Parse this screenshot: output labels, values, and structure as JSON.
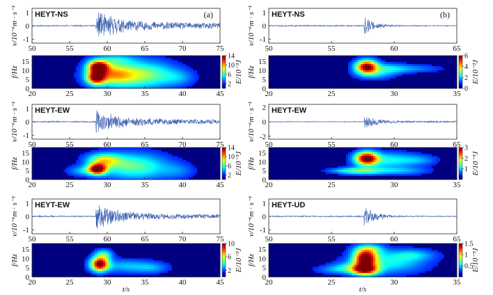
{
  "chart_data": {
    "type": "multi-panel waveform and time-frequency spectrogram",
    "panels": [
      {
        "id": "a",
        "label": "(a)",
        "waveforms": [
          {
            "station": "HEYT-NS",
            "ylabel": "v/10⁻⁶m · s⁻¹",
            "xlim": [
              50,
              75
            ],
            "xticks": [
              50,
              55,
              60,
              65,
              70,
              75
            ],
            "ylim": [
              -1.3,
              1.3
            ],
            "yticks": [
              -1,
              0,
              1
            ],
            "onset_s": 58.5,
            "peak_amp": 0.9,
            "decay_s": 3.5,
            "tail_amp": 0.18,
            "seed": 11
          },
          {
            "station": "HEYT-EW",
            "ylabel": "v/10⁻⁶m · s⁻¹",
            "xlim": [
              50,
              75
            ],
            "xticks": [
              50,
              55,
              60,
              65,
              70,
              75
            ],
            "ylim": [
              -1.3,
              1.3
            ],
            "yticks": [
              -1,
              0,
              1
            ],
            "onset_s": 58.5,
            "peak_amp": 0.7,
            "decay_s": 3.5,
            "tail_amp": 0.15,
            "seed": 23
          },
          {
            "station": "HEYT-EW",
            "ylabel": "v/10⁻⁶m · s⁻¹",
            "xlim": [
              50,
              75
            ],
            "xticks": [
              50,
              55,
              60,
              65,
              70,
              75
            ],
            "ylim": [
              -1.3,
              1.3
            ],
            "yticks": [
              -1,
              0,
              1
            ],
            "onset_s": 58.5,
            "peak_amp": 0.85,
            "decay_s": 3,
            "tail_amp": 0.14,
            "seed": 37
          }
        ],
        "spectrograms": [
          {
            "ylabel": "f/Hz",
            "xlabel": "",
            "xlim": [
              20,
              45
            ],
            "xticks": [
              20,
              25,
              30,
              35,
              40,
              45
            ],
            "ylim": [
              0,
              18
            ],
            "yticks": [
              0,
              5,
              10,
              15
            ],
            "cbar_label": "E/10⁻³J",
            "cbar_max": 14,
            "cbar_ticks": [
              2,
              6,
              10,
              14
            ],
            "blobs": [
              [
                28.8,
                12,
                0.9,
                2.2,
                1
              ],
              [
                28.5,
                6,
                0.8,
                2.5,
                0.85
              ],
              [
                30.5,
                8,
                2,
                4,
                0.45
              ],
              [
                33,
                7,
                3,
                5,
                0.32
              ],
              [
                36,
                8,
                2.5,
                5,
                0.22
              ],
              [
                39.5,
                6,
                1.5,
                3,
                0.15
              ],
              [
                31,
                16,
                2,
                2,
                0.22
              ]
            ]
          },
          {
            "ylabel": "f/Hz",
            "xlabel": "",
            "xlim": [
              20,
              45
            ],
            "xticks": [
              20,
              25,
              30,
              35,
              40,
              45
            ],
            "ylim": [
              0,
              18
            ],
            "yticks": [
              0,
              5,
              10,
              15
            ],
            "cbar_label": "E/10⁻³J",
            "cbar_max": 14,
            "cbar_ticks": [
              2,
              6,
              10,
              14
            ],
            "blobs": [
              [
                28.7,
                6,
                0.8,
                2,
                1
              ],
              [
                29.5,
                11,
                1.5,
                2.5,
                0.45
              ],
              [
                32,
                8,
                2.5,
                5,
                0.3
              ],
              [
                35.5,
                7,
                2.5,
                5,
                0.22
              ],
              [
                27,
                5,
                1.5,
                2,
                0.22
              ],
              [
                39.5,
                5,
                1.5,
                3,
                0.12
              ]
            ]
          },
          {
            "ylabel": "f/Hz",
            "xlabel": "t/s",
            "xlim": [
              20,
              45
            ],
            "xticks": [
              20,
              25,
              30,
              35,
              40,
              45
            ],
            "ylim": [
              0,
              18
            ],
            "yticks": [
              0,
              5,
              10,
              15
            ],
            "cbar_label": "E/10⁻³J",
            "cbar_max": 10,
            "cbar_ticks": [
              2,
              6,
              10
            ],
            "blobs": [
              [
                29,
                7,
                0.8,
                2.5,
                1
              ],
              [
                29.5,
                12,
                0.8,
                2,
                0.35
              ],
              [
                32.5,
                6,
                2.5,
                2.5,
                0.22
              ],
              [
                36,
                5,
                1.5,
                2,
                0.15
              ]
            ]
          }
        ]
      },
      {
        "id": "b",
        "label": "(b)",
        "waveforms": [
          {
            "station": "HEYT-NS",
            "ylabel": "v/10⁻⁶m · s⁻¹",
            "xlim": [
              50,
              65
            ],
            "xticks": [
              50,
              55,
              60,
              65
            ],
            "ylim": [
              -1.3,
              1.3
            ],
            "yticks": [
              -1,
              0,
              1
            ],
            "onset_s": 57.6,
            "peak_amp": 0.6,
            "decay_s": 0.8,
            "tail_amp": 0.03,
            "seed": 51
          },
          {
            "station": "HEYT-EW",
            "ylabel": "v/10⁻⁶m · s⁻¹",
            "xlim": [
              50,
              65
            ],
            "xticks": [
              50,
              55,
              60,
              65
            ],
            "ylim": [
              -2.4,
              2.4
            ],
            "yticks": [
              -2,
              0,
              2
            ],
            "onset_s": 57.6,
            "peak_amp": 0.9,
            "decay_s": 1,
            "tail_amp": 0.08,
            "seed": 67
          },
          {
            "station": "HEYT-UD",
            "ylabel": "v/10⁻⁶m · s⁻¹",
            "xlim": [
              50,
              65
            ],
            "xticks": [
              50,
              55,
              60,
              65
            ],
            "ylim": [
              -1.3,
              1.3
            ],
            "yticks": [
              -1,
              0,
              1
            ],
            "onset_s": 57.6,
            "peak_amp": 0.8,
            "decay_s": 0.8,
            "tail_amp": 0.03,
            "seed": 83
          }
        ],
        "spectrograms": [
          {
            "ylabel": "f/Hz",
            "xlabel": "",
            "xlim": [
              20,
              35
            ],
            "xticks": [
              20,
              25,
              30,
              35
            ],
            "ylim": [
              0,
              18
            ],
            "yticks": [
              0,
              5,
              10,
              15
            ],
            "cbar_label": "E/10⁻³J",
            "cbar_max": 6,
            "cbar_ticks": [
              0,
              2,
              4,
              6
            ],
            "blobs": [
              [
                27.8,
                12,
                0.6,
                2.5,
                1
              ],
              [
                29.5,
                11,
                1,
                2,
                0.22
              ],
              [
                31.5,
                11,
                1.5,
                1.5,
                0.15
              ],
              [
                28.5,
                8,
                1,
                2,
                0.2
              ]
            ]
          },
          {
            "ylabel": "f/Hz",
            "xlabel": "",
            "xlim": [
              20,
              35
            ],
            "xticks": [
              20,
              25,
              30,
              35
            ],
            "ylim": [
              0,
              18
            ],
            "yticks": [
              0,
              5,
              10,
              15
            ],
            "cbar_label": "E/10⁻³J",
            "cbar_max": 3,
            "cbar_ticks": [
              1,
              2,
              3
            ],
            "blobs": [
              [
                27.8,
                12,
                0.6,
                2.5,
                1
              ],
              [
                27.5,
                5,
                1.2,
                1.5,
                0.35
              ],
              [
                29.5,
                11,
                1.5,
                3,
                0.3
              ],
              [
                30.5,
                5,
                1.5,
                1.5,
                0.2
              ],
              [
                32,
                11,
                1,
                2,
                0.15
              ],
              [
                26,
                5,
                1,
                1,
                0.15
              ]
            ]
          },
          {
            "ylabel": "f/Hz",
            "xlabel": "t/s",
            "xlim": [
              20,
              35
            ],
            "xticks": [
              20,
              25,
              30,
              35
            ],
            "ylim": [
              0,
              18
            ],
            "yticks": [
              0,
              5,
              10,
              15
            ],
            "cbar_label": "E/10⁻³J",
            "cbar_max": 1.5,
            "cbar_ticks": [
              0.5,
              1,
              1.5
            ],
            "blobs": [
              [
                27.7,
                10,
                0.6,
                3,
                1
              ],
              [
                27.7,
                4,
                0.7,
                2,
                0.9
              ],
              [
                28,
                15,
                0.8,
                2,
                0.35
              ],
              [
                29.5,
                8,
                2,
                4,
                0.3
              ],
              [
                31.5,
                12,
                1.2,
                2,
                0.2
              ],
              [
                26.5,
                5,
                1,
                2,
                0.25
              ],
              [
                25,
                4,
                1,
                1.5,
                0.12
              ]
            ]
          }
        ]
      }
    ]
  }
}
